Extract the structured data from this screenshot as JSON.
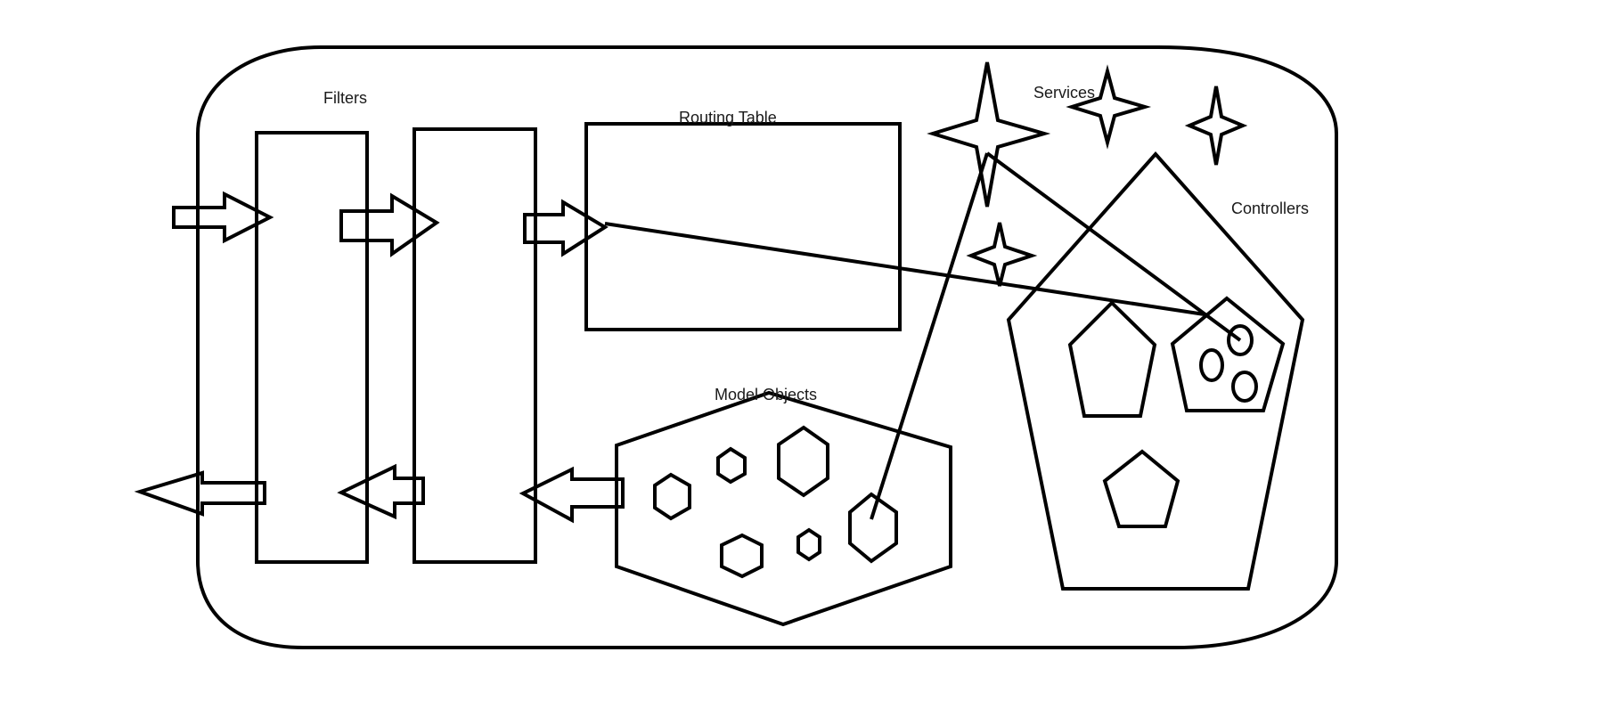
{
  "diagram": {
    "labels": {
      "filters": "Filters",
      "routing_table": "Routing Table",
      "services": "Services",
      "controllers": "Controllers",
      "model_objects": "Model Objects"
    },
    "colors": {
      "stroke": "#000000",
      "background": "#ffffff",
      "text": "#1a1a1a"
    }
  }
}
